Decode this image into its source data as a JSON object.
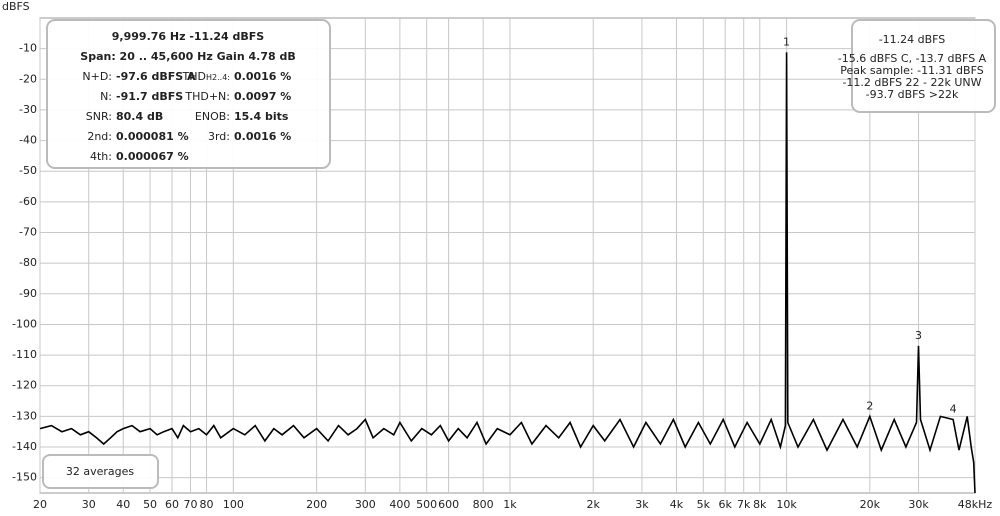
{
  "chart_data": {
    "type": "line",
    "y_axis_label": "dBFS",
    "log_x": true,
    "grid": true,
    "color": "#000000",
    "xlim": [
      20,
      48000
    ],
    "ylim": [
      -155,
      0
    ],
    "xticks": [
      20,
      30,
      40,
      50,
      60,
      70,
      80,
      100,
      200,
      300,
      400,
      500,
      600,
      800,
      {
        "value": 1000,
        "label": "1k"
      },
      {
        "value": 2000,
        "label": "2k"
      },
      {
        "value": 3000,
        "label": "3k"
      },
      {
        "value": 4000,
        "label": "4k"
      },
      {
        "value": 5000,
        "label": "5k"
      },
      {
        "value": 6000,
        "label": "6k"
      },
      {
        "value": 7000,
        "label": "7k"
      },
      {
        "value": 8000,
        "label": "8k"
      },
      {
        "value": 10000,
        "label": "10k"
      },
      {
        "value": 20000,
        "label": "20k"
      },
      {
        "value": 30000,
        "label": "30k"
      },
      {
        "value": 48000,
        "label": "48kHz"
      }
    ],
    "yticks": [
      -10,
      -20,
      -30,
      -40,
      -50,
      -60,
      -70,
      -80,
      -90,
      -100,
      -110,
      -120,
      -130,
      -140,
      -150
    ],
    "x": [
      20,
      22,
      24,
      26,
      28,
      30,
      32,
      34,
      36,
      38,
      40,
      43,
      46,
      50,
      53,
      56,
      60,
      63,
      66,
      70,
      75,
      80,
      85,
      90,
      100,
      110,
      120,
      130,
      140,
      150,
      165,
      180,
      200,
      220,
      240,
      260,
      280,
      300,
      320,
      350,
      380,
      400,
      440,
      480,
      520,
      560,
      600,
      650,
      700,
      760,
      820,
      900,
      1000,
      1100,
      1200,
      1350,
      1500,
      1650,
      1800,
      2000,
      2200,
      2500,
      2800,
      3100,
      3500,
      3900,
      4300,
      4800,
      5300,
      5900,
      6500,
      7200,
      8000,
      8800,
      9500,
      9900,
      10000,
      10100,
      11000,
      12500,
      14000,
      16000,
      18000,
      20000,
      22000,
      24500,
      27000,
      29500,
      30000,
      30500,
      33000,
      36000,
      40000,
      42000,
      45000,
      46500,
      47500,
      48000
    ],
    "values": [
      -134,
      -133,
      -135,
      -134,
      -136,
      -135,
      -137,
      -139,
      -137,
      -135,
      -134,
      -133,
      -135,
      -134,
      -136,
      -135,
      -134,
      -137,
      -133,
      -135,
      -134,
      -136,
      -133,
      -137,
      -134,
      -136,
      -133,
      -138,
      -134,
      -136,
      -133,
      -137,
      -134,
      -138,
      -133,
      -136,
      -134,
      -131,
      -137,
      -134,
      -136,
      -132,
      -138,
      -134,
      -136,
      -133,
      -138,
      -134,
      -137,
      -132,
      -139,
      -134,
      -136,
      -132,
      -139,
      -133,
      -137,
      -132,
      -140,
      -133,
      -138,
      -131,
      -140,
      -132,
      -139,
      -131,
      -140,
      -132,
      -139,
      -131,
      -140,
      -132,
      -139,
      -131,
      -140,
      -133,
      -11.24,
      -132,
      -140,
      -131,
      -141,
      -131,
      -140,
      -130,
      -141,
      -131,
      -140,
      -132,
      -107,
      -131,
      -141,
      -130,
      -131,
      -141,
      -130,
      -140,
      -145,
      -155
    ],
    "peaks": [
      {
        "label": "1",
        "x": 10000,
        "y": -11.24
      },
      {
        "label": "2",
        "x": 20000,
        "y": -130
      },
      {
        "label": "3",
        "x": 30000,
        "y": -107
      },
      {
        "label": "4",
        "x": 40000,
        "y": -131
      }
    ],
    "averages": "32 averages",
    "info": {
      "line1": "9,999.76 Hz  -11.24 dBFS",
      "line2": "Span: 20 .. 45,600 Hz   Gain 4.78 dB",
      "rows": [
        {
          "label": "N+D:",
          "value": "-97.6 dBFS A",
          "label2": "THD",
          "label2_sub": "H2..4:",
          "value2": "0.0016 %"
        },
        {
          "label": "N:",
          "value": "-91.7 dBFS",
          "label2": "THD+N:",
          "value2": "0.0097 %"
        },
        {
          "label": "SNR:",
          "value": "80.4 dB",
          "label2": "ENOB:",
          "value2": "15.4 bits"
        },
        {
          "label": "2nd:",
          "value": "0.000081 %",
          "label2": "3rd:",
          "value2": "0.0016 %"
        },
        {
          "label": "4th:",
          "value": "0.000067 %"
        }
      ]
    },
    "level": {
      "main": "-11.24 dBFS",
      "lines": [
        "-15.6 dBFS C, -13.7 dBFS A",
        "Peak sample: -11.31 dBFS",
        "-11.2 dBFS 22 - 22k UNW",
        "-93.7 dBFS >22k"
      ]
    }
  }
}
